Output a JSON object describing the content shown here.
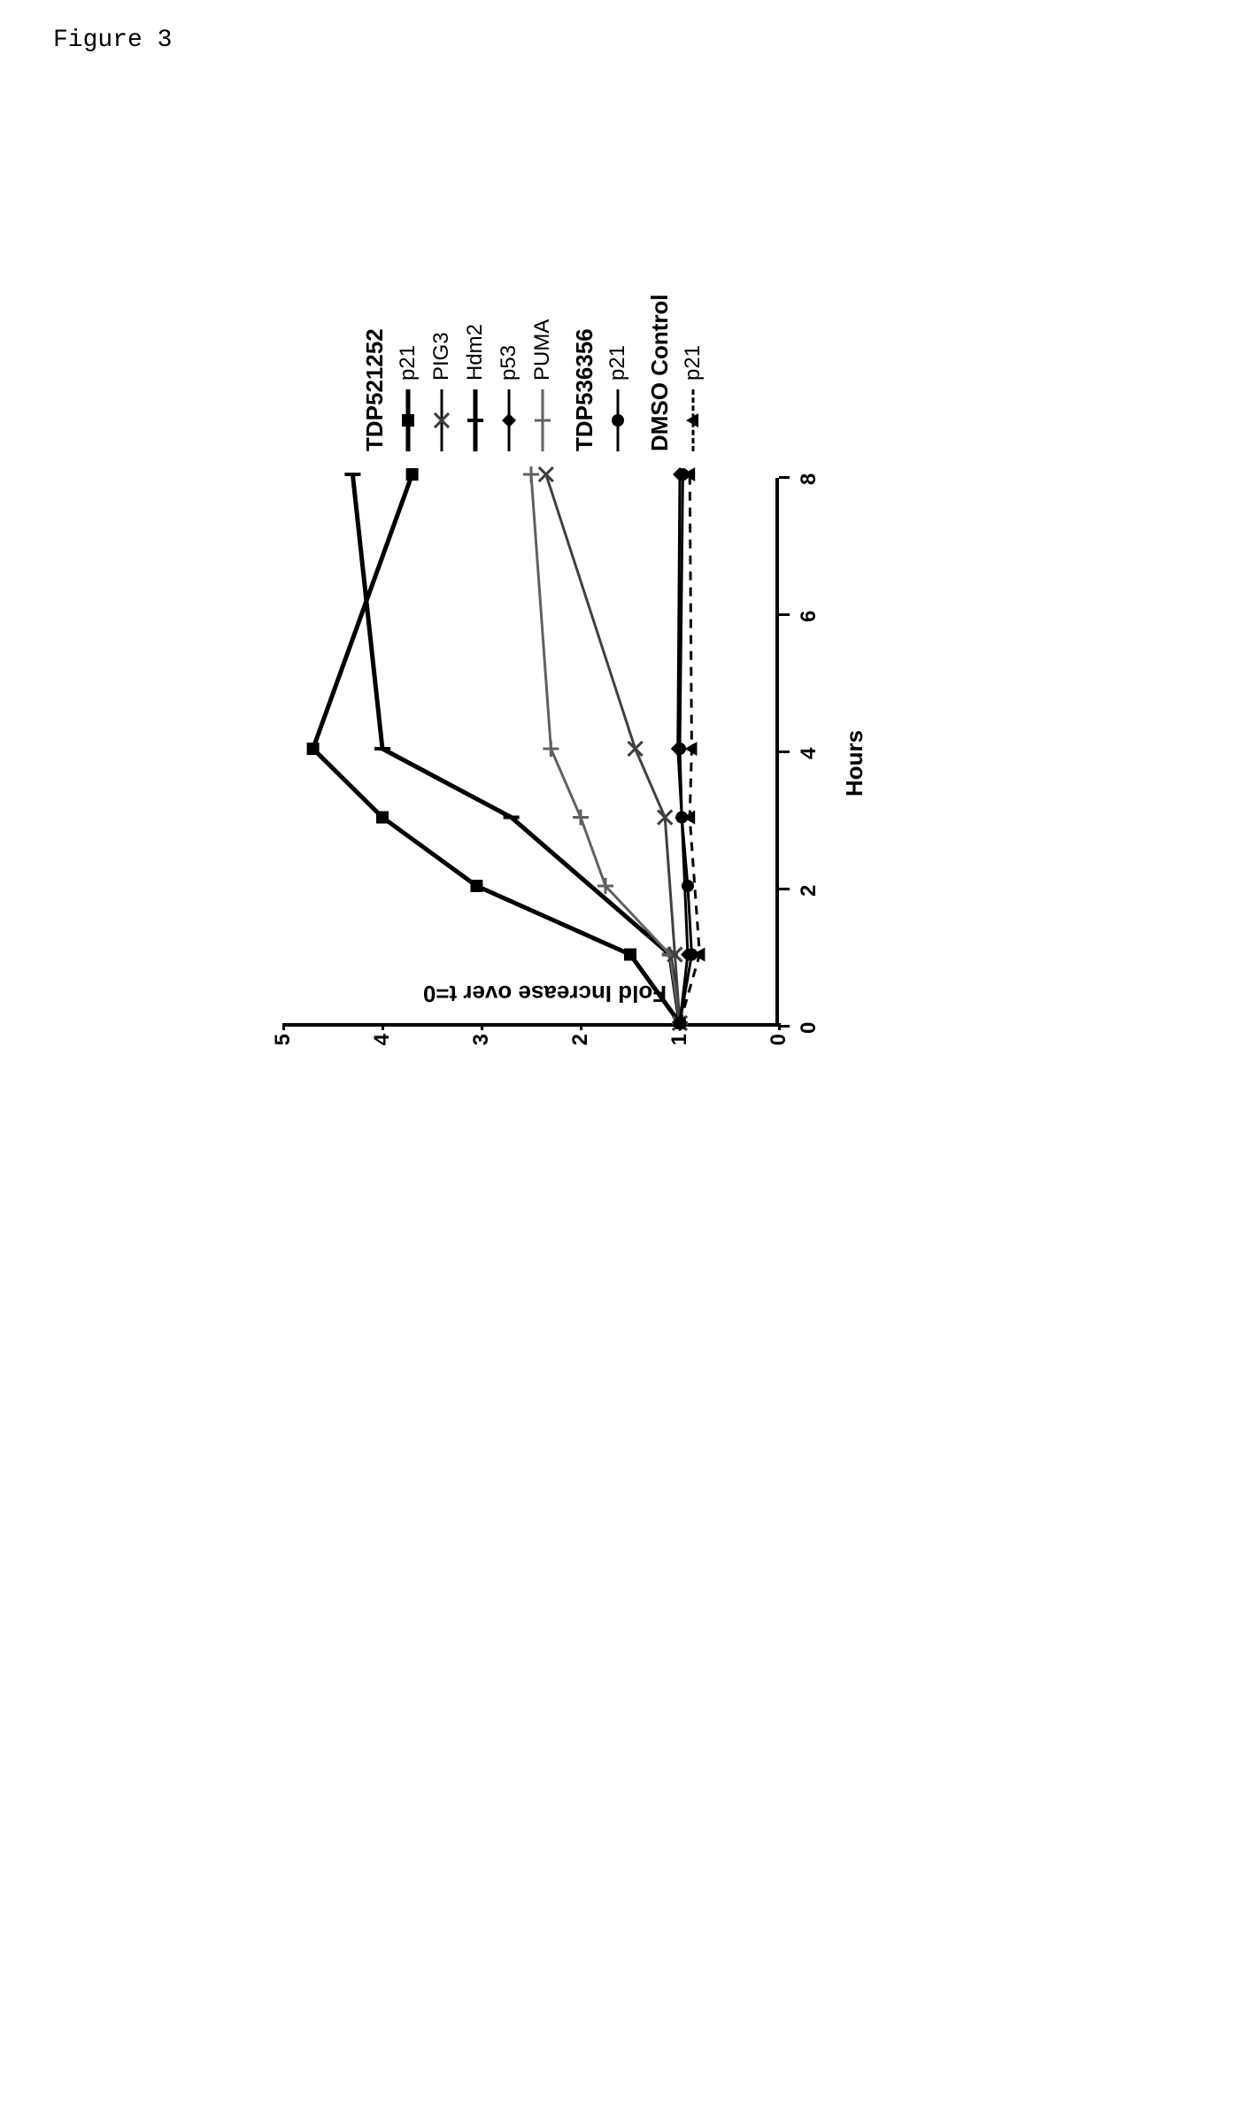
{
  "figure_label": "Figure 3",
  "chart": {
    "type": "line",
    "x_label": "Hours",
    "y_label": "Fold Increase over t=0",
    "xlim": [
      0,
      8
    ],
    "ylim": [
      0,
      5
    ],
    "x_ticks": [
      0,
      2,
      4,
      6,
      8
    ],
    "y_ticks": [
      0,
      1,
      2,
      3,
      4,
      5
    ],
    "background_color": "#ffffff",
    "axis_color": "#000000",
    "tick_fontsize": 24,
    "label_fontsize": 26,
    "legend": {
      "groups": [
        {
          "title": "TDP521252",
          "items": [
            {
              "label": "p21",
              "marker": "square",
              "line_color": "#000000",
              "line_width": 5
            },
            {
              "label": "PIG3",
              "marker": "x",
              "line_color": "#404040",
              "line_width": 3
            },
            {
              "label": "Hdm2",
              "marker": "tick",
              "line_color": "#000000",
              "line_width": 5
            },
            {
              "label": "p53",
              "marker": "diamond",
              "line_color": "#000000",
              "line_width": 3
            },
            {
              "label": "PUMA",
              "marker": "plus",
              "line_color": "#606060",
              "line_width": 3
            }
          ]
        },
        {
          "title": "TDP536356",
          "items": [
            {
              "label": "p21",
              "marker": "circle",
              "line_color": "#000000",
              "line_width": 3
            }
          ]
        },
        {
          "title": "DMSO Control",
          "items": [
            {
              "label": "p21",
              "marker": "triangle",
              "line_color": "#000000",
              "line_width": 3,
              "dashed": true
            }
          ]
        }
      ]
    },
    "series": [
      {
        "name": "TDP521252_p21",
        "marker": "square",
        "line_width": 5,
        "color": "#000000",
        "x": [
          0,
          1,
          2,
          3,
          4,
          8
        ],
        "y": [
          1.0,
          1.5,
          3.05,
          4.0,
          4.7,
          3.7
        ]
      },
      {
        "name": "TDP521252_Hdm2",
        "marker": "tick",
        "line_width": 5,
        "color": "#000000",
        "x": [
          0,
          1,
          3,
          4,
          8
        ],
        "y": [
          1.0,
          1.1,
          2.7,
          4.0,
          4.3
        ]
      },
      {
        "name": "TDP521252_PUMA",
        "marker": "plus",
        "line_width": 3,
        "color": "#606060",
        "x": [
          0,
          1,
          2,
          3,
          4,
          8
        ],
        "y": [
          1.0,
          1.1,
          1.75,
          2.0,
          2.3,
          2.5
        ]
      },
      {
        "name": "TDP521252_PIG3",
        "marker": "x",
        "line_width": 3,
        "color": "#404040",
        "x": [
          0,
          1,
          3,
          4,
          8
        ],
        "y": [
          1.0,
          1.05,
          1.15,
          1.45,
          2.35
        ]
      },
      {
        "name": "TDP521252_p53",
        "marker": "diamond",
        "line_width": 3,
        "color": "#000000",
        "x": [
          0,
          1,
          3,
          4,
          8
        ],
        "y": [
          1.0,
          0.92,
          0.98,
          1.02,
          1.0
        ]
      },
      {
        "name": "TDP536356_p21",
        "marker": "circle",
        "line_width": 3,
        "color": "#000000",
        "x": [
          0,
          1,
          2,
          3,
          4,
          8
        ],
        "y": [
          1.0,
          0.88,
          0.92,
          0.98,
          1.0,
          0.97
        ]
      },
      {
        "name": "DMSO_p21",
        "marker": "triangle",
        "line_width": 3,
        "color": "#000000",
        "dashed": true,
        "x": [
          0,
          1,
          3,
          4,
          8
        ],
        "y": [
          1.0,
          0.8,
          0.9,
          0.88,
          0.9
        ]
      }
    ]
  }
}
